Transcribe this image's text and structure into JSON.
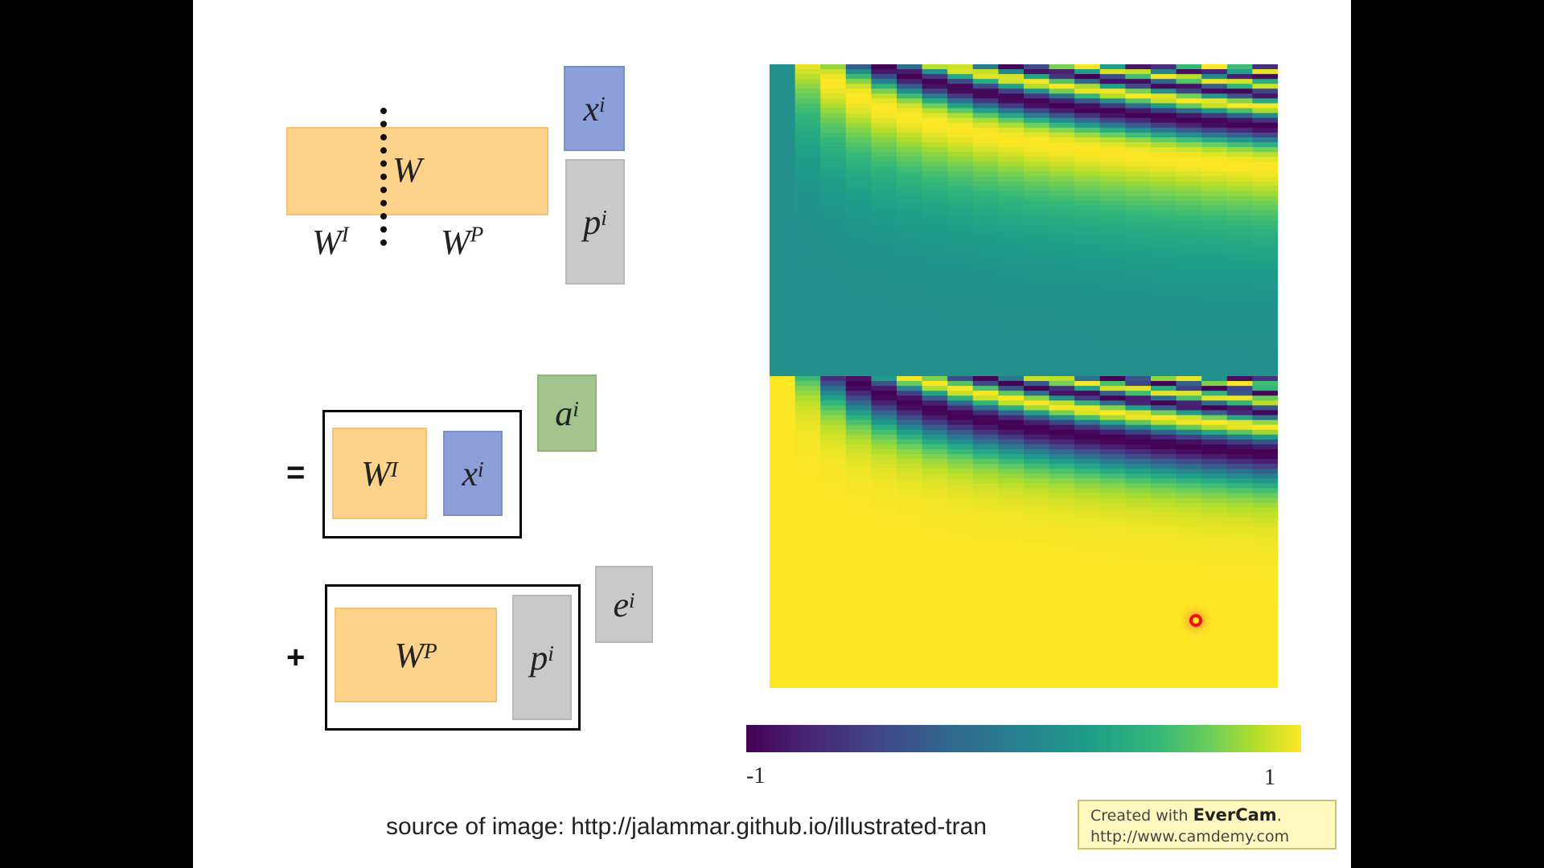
{
  "top": {
    "w_label": "W",
    "wi_label": "W",
    "wi_sup": "I",
    "wp_label": "W",
    "wp_sup": "P",
    "x_label": "x",
    "x_sup": "i",
    "p_label": "p",
    "p_sup": "i"
  },
  "equation": {
    "equals": "=",
    "plus": "+",
    "a_label": "a",
    "a_sup": "i",
    "e_label": "e",
    "e_sup": "i",
    "term1": {
      "w": "W",
      "w_sup": "I",
      "v": "x",
      "v_sup": "i"
    },
    "term2": {
      "w": "W",
      "w_sup": "P",
      "v": "p",
      "v_sup": "i"
    }
  },
  "colors": {
    "orange": "#fdd28a",
    "blue": "#8c9fd8",
    "gray": "#c9c9c9",
    "green": "#a3c48c"
  },
  "colorbar": {
    "min_label": "-1",
    "max_label": "1",
    "colormap": "viridis"
  },
  "source_text": "source of image: http://jalammar.github.io/illustrated-tran",
  "watermark": {
    "line1_prefix": "Created with ",
    "line1_brand": "EverCam",
    "line1_suffix": ".",
    "line2": "http://www.camdemy.com"
  }
}
